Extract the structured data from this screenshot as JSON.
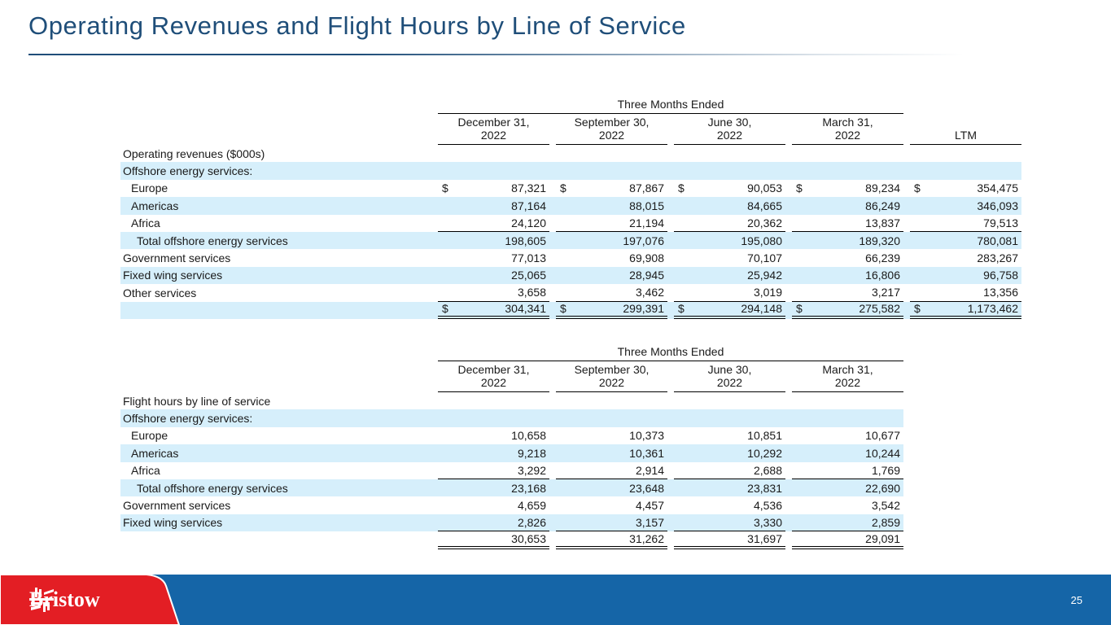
{
  "title": "Operating Revenues and Flight Hours by Line of Service",
  "page_number": "25",
  "logo_text": "Bristow",
  "colors": {
    "title": "#1f4e79",
    "band": "#d6effb",
    "footer_blue": "#1565a7",
    "footer_red": "#e31e24"
  },
  "revenues": {
    "group_header": "Three Months Ended",
    "columns": [
      [
        "December 31,",
        "2022"
      ],
      [
        "September 30,",
        "2022"
      ],
      [
        "June 30,",
        "2022"
      ],
      [
        "March 31,",
        "2022"
      ],
      [
        "",
        "LTM"
      ]
    ],
    "rows": [
      {
        "label": "Operating revenues ($000s)",
        "values": []
      },
      {
        "label": "Offshore energy services:",
        "values": [],
        "band": true
      },
      {
        "label": "Europe",
        "indent": 1,
        "dollar": true,
        "values": [
          "87,321",
          "87,867",
          "90,053",
          "89,234",
          "354,475"
        ]
      },
      {
        "label": "Americas",
        "indent": 1,
        "band": true,
        "values": [
          "87,164",
          "88,015",
          "84,665",
          "86,249",
          "346,093"
        ]
      },
      {
        "label": "Africa",
        "indent": 1,
        "underline": "single",
        "values": [
          "24,120",
          "21,194",
          "20,362",
          "13,837",
          "79,513"
        ]
      },
      {
        "label": "Total offshore energy services",
        "indent": 2,
        "band": true,
        "values": [
          "198,605",
          "197,076",
          "195,080",
          "189,320",
          "780,081"
        ]
      },
      {
        "label": "Government services",
        "values": [
          "77,013",
          "69,908",
          "70,107",
          "66,239",
          "283,267"
        ]
      },
      {
        "label": "Fixed wing services",
        "band": true,
        "values": [
          "25,065",
          "28,945",
          "25,942",
          "16,806",
          "96,758"
        ]
      },
      {
        "label": "Other services",
        "underline": "single",
        "values": [
          "3,658",
          "3,462",
          "3,019",
          "3,217",
          "13,356"
        ]
      },
      {
        "label": "",
        "band": true,
        "dollar": true,
        "underline": "double",
        "values": [
          "304,341",
          "299,391",
          "294,148",
          "275,582",
          "1,173,462"
        ]
      }
    ]
  },
  "flight_hours": {
    "group_header": "Three Months Ended",
    "columns": [
      [
        "December 31,",
        "2022"
      ],
      [
        "September 30,",
        "2022"
      ],
      [
        "June 30,",
        "2022"
      ],
      [
        "March 31,",
        "2022"
      ]
    ],
    "rows": [
      {
        "label": "Flight hours by line of service",
        "values": []
      },
      {
        "label": "Offshore energy services:",
        "values": [],
        "band": true
      },
      {
        "label": "Europe",
        "indent": 1,
        "values": [
          "10,658",
          "10,373",
          "10,851",
          "10,677"
        ]
      },
      {
        "label": "Americas",
        "indent": 1,
        "band": true,
        "values": [
          "9,218",
          "10,361",
          "10,292",
          "10,244"
        ]
      },
      {
        "label": "Africa",
        "indent": 1,
        "underline": "single",
        "values": [
          "3,292",
          "2,914",
          "2,688",
          "1,769"
        ]
      },
      {
        "label": "Total offshore energy services",
        "indent": 2,
        "band": true,
        "values": [
          "23,168",
          "23,648",
          "23,831",
          "22,690"
        ]
      },
      {
        "label": "Government services",
        "values": [
          "4,659",
          "4,457",
          "4,536",
          "3,542"
        ]
      },
      {
        "label": "Fixed wing services",
        "band": true,
        "underline": "single",
        "values": [
          "2,826",
          "3,157",
          "3,330",
          "2,859"
        ]
      },
      {
        "label": "",
        "underline": "double",
        "values": [
          "30,653",
          "31,262",
          "31,697",
          "29,091"
        ]
      }
    ],
    "dollar_sign": "$"
  }
}
